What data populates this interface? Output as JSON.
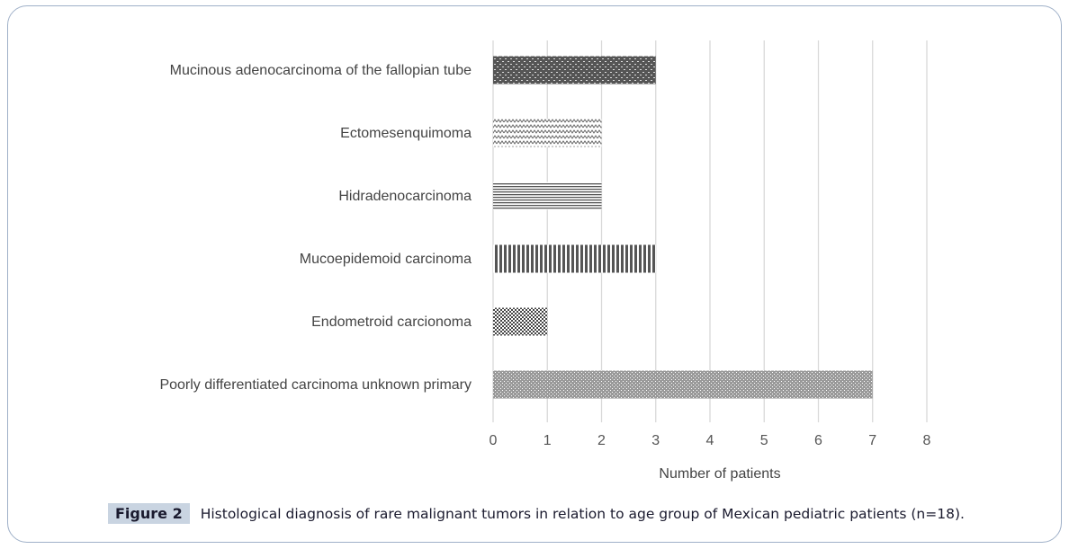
{
  "chart_data": {
    "type": "bar",
    "orientation": "horizontal",
    "categories": [
      "Mucinous adenocarcinoma of the fallopian tube",
      "Ectomesenquimoma",
      "Hidradenocarcinoma",
      "Mucoepidemoid carcinoma",
      "Endometroid carcionoma",
      "Poorly differentiated carcinoma unknown primary"
    ],
    "values": [
      3,
      2,
      2,
      3,
      1,
      7
    ],
    "patterns": [
      "dense-weave",
      "zigzag",
      "horizontal-lines",
      "vertical-lines",
      "checker",
      "fine-dots"
    ],
    "xlabel": "Number of patients",
    "ylabel": "",
    "xlim": [
      0,
      8
    ],
    "xticks": [
      "0",
      "1",
      "2",
      "3",
      "4",
      "5",
      "6",
      "7",
      "8"
    ],
    "grid": "vertical",
    "bar_color": "#555555"
  },
  "caption": {
    "label": "Figure 2",
    "text": "Histological diagnosis of rare malignant tumors in relation to age group of Mexican pediatric patients (n=18)."
  }
}
